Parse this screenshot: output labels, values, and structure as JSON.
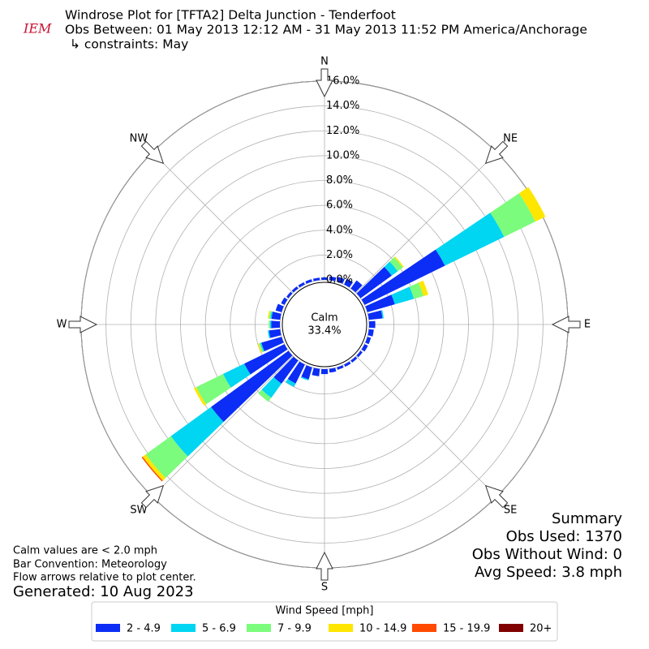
{
  "chart_data": {
    "type": "windrose",
    "logo": "IEM",
    "title": "Windrose Plot for [TFTA2] Delta Junction - Tenderfoot",
    "subtitle": "Obs Between: 01 May 2013 12:12 AM - 31 May 2013 11:52 PM America/Anchorage",
    "constraint": "↳ constraints: May",
    "directions": [
      0,
      10,
      20,
      30,
      40,
      50,
      60,
      70,
      80,
      90,
      100,
      110,
      120,
      130,
      140,
      150,
      160,
      170,
      180,
      190,
      200,
      210,
      220,
      230,
      240,
      250,
      260,
      270,
      280,
      290,
      300,
      310,
      320,
      330,
      340,
      350
    ],
    "compass": [
      {
        "value": 0,
        "label": "N"
      },
      {
        "value": 45,
        "label": "NE"
      },
      {
        "value": 90,
        "label": "E"
      },
      {
        "value": 135,
        "label": "SE"
      },
      {
        "value": 180,
        "label": "S"
      },
      {
        "value": 225,
        "label": "SW"
      },
      {
        "value": 270,
        "label": "W"
      },
      {
        "value": 315,
        "label": "NW"
      }
    ],
    "rlim": [
      0,
      16
    ],
    "rticks": [
      {
        "value": 0,
        "label": "0.0%"
      },
      {
        "value": 2,
        "label": "2.0%"
      },
      {
        "value": 4,
        "label": "4.0%"
      },
      {
        "value": 6,
        "label": "6.0%"
      },
      {
        "value": 8,
        "label": "8.0%"
      },
      {
        "value": 10,
        "label": "10.0%"
      },
      {
        "value": 12,
        "label": "12.0%"
      },
      {
        "value": 14,
        "label": "14.0%"
      },
      {
        "value": 16,
        "label": "16.0%"
      }
    ],
    "calm_label": "Calm",
    "calm_value": 33.4,
    "calm_value_label": "33.4%",
    "legend_title": "Wind Speed [mph]",
    "series": [
      {
        "name": "2 - 4.9",
        "color": "#0b2df5",
        "values": [
          0.2,
          0.3,
          0.4,
          0.5,
          0.8,
          3.1,
          7.2,
          2.3,
          1.1,
          0.5,
          0.4,
          0.3,
          0.3,
          0.2,
          0.2,
          0.2,
          0.2,
          0.3,
          0.4,
          0.6,
          1.0,
          1.7,
          2.3,
          7.7,
          3.6,
          1.7,
          0.9,
          0.7,
          0.7,
          0.5,
          0.3,
          0.2,
          0.2,
          0.2,
          0.2,
          0.2
        ]
      },
      {
        "name": "5 - 6.9",
        "color": "#00d5f2",
        "values": [
          0,
          0,
          0,
          0,
          0,
          0.6,
          5.3,
          1.6,
          0.1,
          0,
          0,
          0,
          0,
          0,
          0,
          0,
          0,
          0,
          0,
          0,
          0.1,
          0.3,
          1.4,
          4.0,
          1.9,
          0.1,
          0.1,
          0.1,
          0.1,
          0,
          0,
          0,
          0,
          0,
          0,
          0
        ]
      },
      {
        "name": "7 - 9.9",
        "color": "#7cfc7c",
        "values": [
          0,
          0,
          0,
          0,
          0,
          0.5,
          2.8,
          0.8,
          0,
          0,
          0,
          0,
          0,
          0,
          0,
          0,
          0,
          0,
          0,
          0,
          0,
          0,
          0.4,
          2.5,
          2.4,
          0.1,
          0,
          0.1,
          0.1,
          0,
          0,
          0,
          0,
          0,
          0,
          0
        ]
      },
      {
        "name": "10 - 14.9",
        "color": "#ffe600",
        "values": [
          0,
          0,
          0,
          0,
          0,
          0.1,
          0.9,
          0.4,
          0,
          0,
          0,
          0,
          0,
          0,
          0,
          0,
          0,
          0,
          0,
          0,
          0,
          0,
          0,
          0.3,
          0.2,
          0.1,
          0,
          0,
          0.1,
          0,
          0,
          0,
          0,
          0,
          0,
          0
        ]
      },
      {
        "name": "15 - 19.9",
        "color": "#ff4a00",
        "values": [
          0,
          0,
          0,
          0,
          0,
          0,
          0,
          0,
          0,
          0,
          0,
          0,
          0,
          0,
          0,
          0,
          0,
          0,
          0,
          0,
          0,
          0,
          0,
          0.1,
          0,
          0,
          0,
          0,
          0,
          0,
          0,
          0,
          0,
          0,
          0,
          0
        ]
      },
      {
        "name": "20+",
        "color": "#800000",
        "values": [
          0,
          0,
          0,
          0,
          0,
          0,
          0,
          0,
          0,
          0,
          0,
          0,
          0,
          0,
          0,
          0,
          0,
          0,
          0,
          0,
          0,
          0,
          0,
          0,
          0,
          0,
          0,
          0,
          0,
          0,
          0,
          0,
          0,
          0,
          0,
          0
        ]
      }
    ],
    "notes": [
      "Calm values are < 2.0 mph",
      "Bar Convention: Meteorology",
      "Flow arrows relative to plot center."
    ],
    "generated": "Generated: 10 Aug 2023",
    "summary": [
      "Summary",
      "Obs Used: 1370",
      "Obs Without Wind: 0",
      "Avg Speed: 3.8 mph"
    ]
  }
}
